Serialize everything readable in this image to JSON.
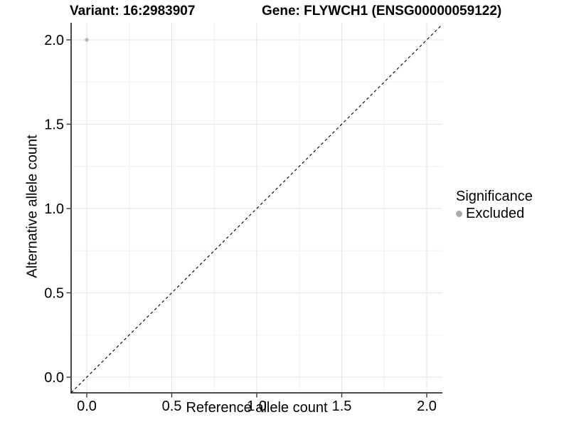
{
  "chart_data": {
    "type": "scatter",
    "title_left": "Variant: 16:2983907",
    "title_right": "Gene: FLYWCH1 (ENSG00000059122)",
    "xlabel": "Reference allele count",
    "ylabel": "Alternative allele count",
    "xlim": [
      -0.09,
      2.09
    ],
    "ylim": [
      -0.09,
      2.09
    ],
    "x_ticks": {
      "values": [
        0,
        0.5,
        1,
        1.5,
        2
      ],
      "labels": [
        "0.0",
        "0.5",
        "1.0",
        "1.5",
        "2.0"
      ]
    },
    "y_ticks": {
      "values": [
        0,
        0.5,
        1,
        1.5,
        2
      ],
      "labels": [
        "0.0",
        "0.5",
        "1.0",
        "1.5",
        "2.0"
      ]
    },
    "minor_grid_values": [
      0.25,
      0.75,
      1.25,
      1.75
    ],
    "grid": "major+minor",
    "points": [
      {
        "x": 0.0,
        "y": 2.0,
        "series": "Excluded"
      }
    ],
    "identity_line": {
      "slope": 1,
      "intercept": 0,
      "style": "dashed",
      "color": "#000000"
    },
    "legend": {
      "title": "Significance",
      "position": "right",
      "items": [
        {
          "label": "Excluded",
          "color": "#aaaaaa"
        }
      ]
    },
    "colors": {
      "point_excluded": "#b4b4b4",
      "grid_major": "#e3e3e3",
      "grid_minor": "#f0f0f0",
      "axis_line": "#333333",
      "tick_mark": "#333333",
      "background": "#ffffff"
    }
  }
}
